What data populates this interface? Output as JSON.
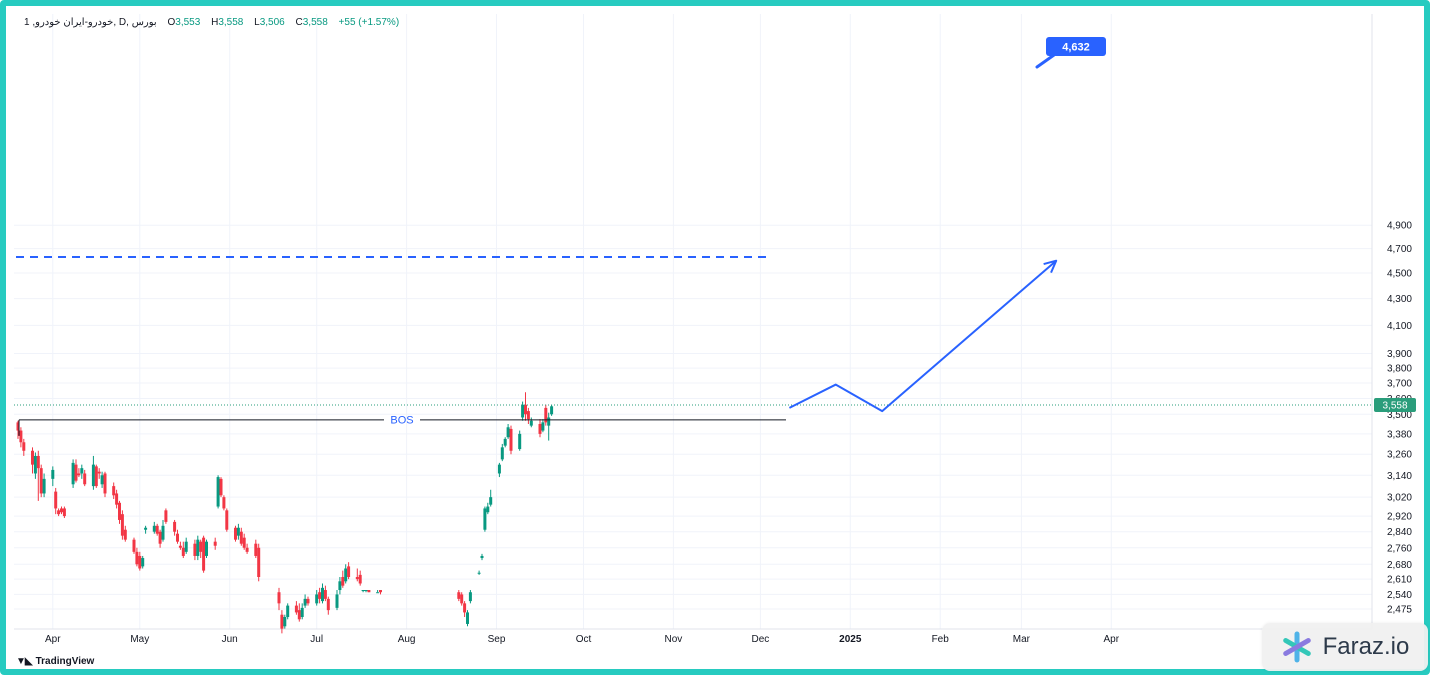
{
  "header": {
    "symbol": "1 ,خودرو-ایران خودرو, D, بورس",
    "open_label": "O",
    "open": "3,553",
    "high_label": "H",
    "high": "3,558",
    "low_label": "L",
    "low": "3,506",
    "close_label": "C",
    "close": "3,558",
    "change": "+55 (+1.57%)"
  },
  "colors": {
    "up": "#089981",
    "down": "#f23645",
    "projection": "#2962ff",
    "border": "#27cbc0",
    "price_label": "#2a9d7b"
  },
  "watermark": {
    "brand": "Faraz.io",
    "icon": "asterisk-logo-icon"
  },
  "footer": {
    "brand": "TradingView",
    "icon": "tradingview-logo-icon"
  },
  "chart_data": {
    "type": "candlestick",
    "y_axis": {
      "ticks": [
        "4,900",
        "4,700",
        "4,500",
        "4,300",
        "4,100",
        "3,900",
        "3,800",
        "3,700",
        "3,600",
        "3,500",
        "3,380",
        "3,260",
        "3,140",
        "3,020",
        "2,920",
        "2,840",
        "2,760",
        "2,680",
        "2,610",
        "2,540",
        "2,475"
      ],
      "scale": "log"
    },
    "x_axis": {
      "ticks": [
        "Apr",
        "May",
        "Jun",
        "Jul",
        "Aug",
        "Sep",
        "Oct",
        "Nov",
        "Dec",
        "2025",
        "Feb",
        "Mar",
        "Apr"
      ]
    },
    "last_price": 3558,
    "last_price_label": "3,558",
    "annotations": {
      "bos": {
        "label": "BOS",
        "price": 3465
      },
      "resistance_price": 4630,
      "target": {
        "label": "4,632",
        "price": 4632
      },
      "projection_path": [
        {
          "date": "2024-12-11",
          "price": 3540
        },
        {
          "date": "2024-12-27",
          "price": 3690
        },
        {
          "date": "2025-01-12",
          "price": 3520
        },
        {
          "date": "2025-03-13",
          "price": 4600
        }
      ]
    },
    "candles": [
      [
        3450,
        3400,
        3460,
        3350
      ],
      [
        3400,
        3330,
        3420,
        3300
      ],
      [
        3330,
        3280,
        3350,
        3250
      ],
      [
        3280,
        3200,
        3300,
        3150
      ],
      [
        3150,
        3250,
        3270,
        3120
      ],
      [
        3250,
        3180,
        3280,
        3000
      ],
      [
        3180,
        3040,
        3200,
        3020
      ],
      [
        3040,
        3120,
        3150,
        3020
      ],
      [
        3120,
        3170,
        3190,
        3080
      ],
      [
        3050,
        2960,
        3070,
        2930
      ],
      [
        2950,
        2930,
        2960,
        2920
      ],
      [
        2960,
        2940,
        2970,
        2930
      ],
      [
        2960,
        2920,
        2970,
        2910
      ],
      [
        3090,
        3210,
        3230,
        3070
      ],
      [
        3200,
        3110,
        3230,
        3100
      ],
      [
        3150,
        3140,
        3180,
        3130
      ],
      [
        3150,
        3180,
        3200,
        3120
      ],
      [
        3150,
        3090,
        3170,
        3080
      ],
      [
        3080,
        3200,
        3250,
        3060
      ],
      [
        3190,
        3080,
        3200,
        3070
      ],
      [
        3160,
        3150,
        3180,
        3120
      ],
      [
        3090,
        3140,
        3160,
        3070
      ],
      [
        3150,
        3040,
        3160,
        3020
      ],
      [
        3080,
        3030,
        3100,
        3010
      ],
      [
        3040,
        2980,
        3060,
        2960
      ],
      [
        2990,
        2900,
        3000,
        2880
      ],
      [
        2930,
        2820,
        2950,
        2800
      ],
      [
        2850,
        2800,
        2870,
        2790
      ],
      [
        2800,
        2740,
        2810,
        2730
      ],
      [
        2740,
        2680,
        2760,
        2670
      ],
      [
        2720,
        2660,
        2740,
        2650
      ],
      [
        2670,
        2710,
        2720,
        2660
      ],
      [
        2850,
        2860,
        2870,
        2830
      ],
      [
        2840,
        2870,
        2890,
        2830
      ],
      [
        2870,
        2830,
        2880,
        2820
      ],
      [
        2840,
        2780,
        2850,
        2760
      ],
      [
        2800,
        2870,
        2900,
        2790
      ],
      [
        2950,
        2890,
        2960,
        2880
      ],
      [
        2890,
        2840,
        2900,
        2820
      ],
      [
        2830,
        2790,
        2850,
        2780
      ],
      [
        2770,
        2760,
        2790,
        2750
      ],
      [
        2760,
        2720,
        2790,
        2710
      ],
      [
        2740,
        2790,
        2810,
        2730
      ],
      [
        2780,
        2720,
        2800,
        2700
      ],
      [
        2720,
        2800,
        2820,
        2700
      ],
      [
        2790,
        2740,
        2800,
        2710
      ],
      [
        2810,
        2650,
        2820,
        2640
      ],
      [
        2720,
        2790,
        2800,
        2710
      ],
      [
        2790,
        2770,
        2810,
        2750
      ],
      [
        2970,
        3130,
        3140,
        2960
      ],
      [
        3120,
        3030,
        3130,
        3020
      ],
      [
        3020,
        2960,
        3030,
        2950
      ],
      [
        2950,
        2850,
        2960,
        2840
      ],
      [
        2860,
        2800,
        2870,
        2790
      ],
      [
        2820,
        2860,
        2880,
        2800
      ],
      [
        2840,
        2780,
        2860,
        2770
      ],
      [
        2810,
        2760,
        2830,
        2750
      ],
      [
        2760,
        2740,
        2780,
        2730
      ],
      [
        2780,
        2720,
        2800,
        2710
      ],
      [
        2760,
        2620,
        2780,
        2600
      ],
      [
        2550,
        2500,
        2570,
        2470
      ],
      [
        2450,
        2390,
        2470,
        2370
      ],
      [
        2400,
        2440,
        2450,
        2390
      ],
      [
        2440,
        2490,
        2500,
        2430
      ],
      [
        2490,
        2460,
        2510,
        2450
      ],
      [
        2470,
        2430,
        2500,
        2420
      ],
      [
        2440,
        2480,
        2500,
        2430
      ],
      [
        2490,
        2520,
        2540,
        2480
      ],
      [
        2520,
        2500,
        2530,
        2490
      ],
      [
        2500,
        2540,
        2560,
        2490
      ],
      [
        2550,
        2520,
        2570,
        2500
      ],
      [
        2510,
        2570,
        2590,
        2500
      ],
      [
        2560,
        2520,
        2580,
        2510
      ],
      [
        2520,
        2470,
        2530,
        2450
      ],
      [
        2480,
        2540,
        2560,
        2470
      ],
      [
        2560,
        2600,
        2620,
        2540
      ],
      [
        2620,
        2580,
        2650,
        2570
      ],
      [
        2600,
        2660,
        2680,
        2590
      ],
      [
        2670,
        2620,
        2690,
        2610
      ],
      [
        2620,
        2610,
        2660,
        2600
      ],
      [
        2630,
        2590,
        2650,
        2580
      ],
      [
        2560,
        2560,
        2560,
        2550
      ],
      [
        2560,
        2560,
        2560,
        2550
      ],
      [
        2560,
        2550,
        2560,
        2550
      ],
      [
        2550,
        2550,
        2560,
        2550
      ],
      [
        2560,
        2550,
        2560,
        2540
      ],
      [
        2550,
        2520,
        2560,
        2510
      ],
      [
        2540,
        2500,
        2550,
        2490
      ],
      [
        2500,
        2460,
        2510,
        2440
      ],
      [
        2410,
        2460,
        2470,
        2400
      ],
      [
        2510,
        2550,
        2560,
        2500
      ],
      [
        2640,
        2640,
        2650,
        2630
      ],
      [
        2710,
        2720,
        2730,
        2700
      ],
      [
        2850,
        2960,
        2970,
        2840
      ],
      [
        2940,
        2970,
        2990,
        2930
      ],
      [
        2980,
        3020,
        3060,
        2970
      ],
      [
        3150,
        3200,
        3210,
        3130
      ],
      [
        3230,
        3300,
        3320,
        3220
      ],
      [
        3310,
        3350,
        3360,
        3300
      ],
      [
        3360,
        3420,
        3440,
        3350
      ],
      [
        3410,
        3280,
        3430,
        3260
      ],
      [
        3290,
        3380,
        3400,
        3280
      ],
      [
        3480,
        3560,
        3580,
        3460
      ],
      [
        3560,
        3500,
        3640,
        3460
      ],
      [
        3520,
        3470,
        3540,
        3440
      ],
      [
        3430,
        3460,
        3480,
        3420
      ],
      [
        3440,
        3380,
        3470,
        3360
      ],
      [
        3400,
        3450,
        3470,
        3390
      ],
      [
        3540,
        3450,
        3560,
        3430
      ],
      [
        3430,
        3480,
        3510,
        3340
      ],
      [
        3500,
        3550,
        3560,
        3490
      ]
    ]
  }
}
